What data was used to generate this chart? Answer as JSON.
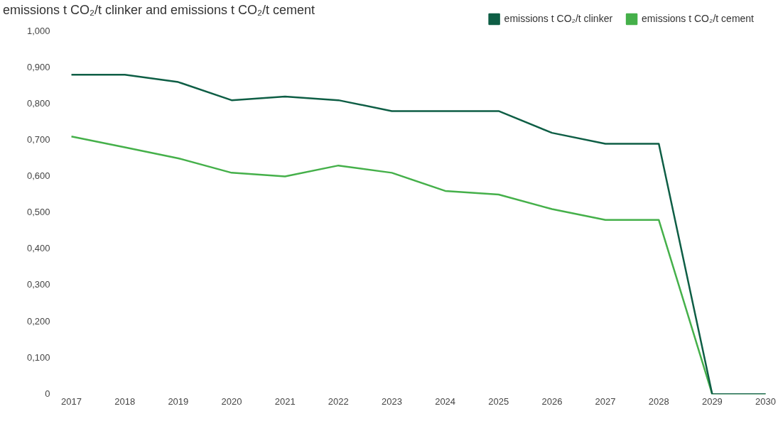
{
  "chart_data": {
    "type": "line",
    "title": "emissions t CO₂/t clinker and emissions t CO₂/t cement",
    "categories": [
      "2017",
      "2018",
      "2019",
      "2020",
      "2021",
      "2022",
      "2023",
      "2024",
      "2025",
      "2026",
      "2027",
      "2028",
      "2029",
      "2030"
    ],
    "series": [
      {
        "name": "emissions t CO₂/t clinker",
        "color": "#0e5e45",
        "values": [
          0.88,
          0.88,
          0.86,
          0.81,
          0.82,
          0.81,
          0.78,
          0.78,
          0.78,
          0.72,
          0.69,
          0.69,
          0,
          0
        ]
      },
      {
        "name": "emissions t CO₂/t cement",
        "color": "#45b04a",
        "values": [
          0.71,
          0.68,
          0.65,
          0.61,
          0.6,
          0.63,
          0.61,
          0.56,
          0.55,
          0.51,
          0.48,
          0.48,
          0,
          0
        ]
      }
    ],
    "ylim": [
      0,
      1
    ],
    "yticks": [
      0,
      {
        "value": 0.1,
        "label": "0,100"
      },
      {
        "value": 0.2,
        "label": "0,200"
      },
      {
        "value": 0.3,
        "label": "0,300"
      },
      {
        "value": 0.4,
        "label": "0,400"
      },
      {
        "value": 0.5,
        "label": "0,500"
      },
      {
        "value": 0.6,
        "label": "0,600"
      },
      {
        "value": 0.7,
        "label": "0,700"
      },
      {
        "value": 0.8,
        "label": "0,800"
      },
      {
        "value": 0.9,
        "label": "0,900"
      },
      {
        "value": 1,
        "label": "1,000"
      }
    ],
    "grid": false,
    "legend": "top right",
    "marker": "none",
    "line_style": "solid"
  }
}
